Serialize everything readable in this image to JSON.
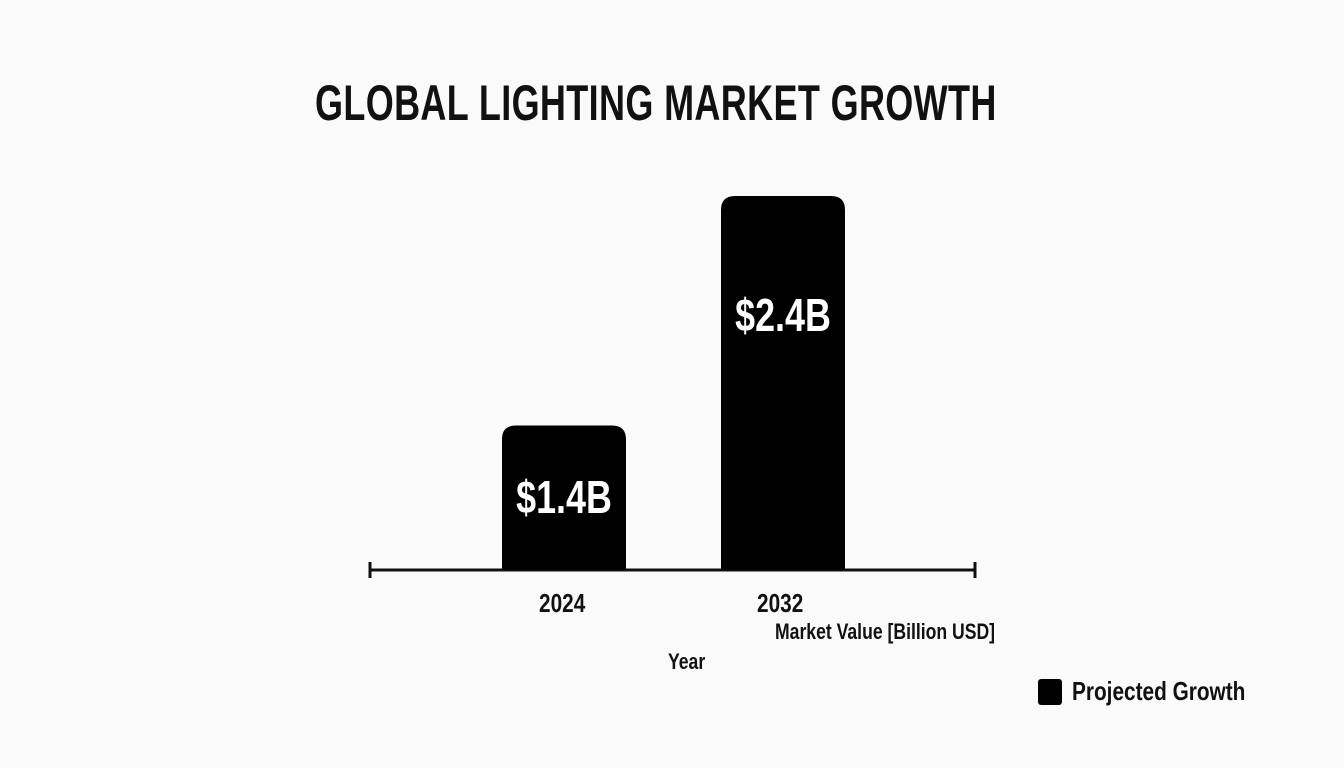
{
  "chart_data": {
    "type": "bar",
    "title": "GLOBAL LIGHTING MARKET GROWTH",
    "categories": [
      "2024",
      "2032"
    ],
    "values": [
      1.4,
      2.4
    ],
    "data_labels": [
      "$1.4B",
      "$2.4B"
    ],
    "xlabel": "Year",
    "ylabel": "Market Value [Billion USD]",
    "legend": {
      "entries": [
        "Projected Growth"
      ],
      "position": "bottom-right"
    },
    "bar_color": "#000000",
    "label_color": "#ffffff",
    "grid": false,
    "ylim": [
      0.77,
      2.4
    ]
  }
}
